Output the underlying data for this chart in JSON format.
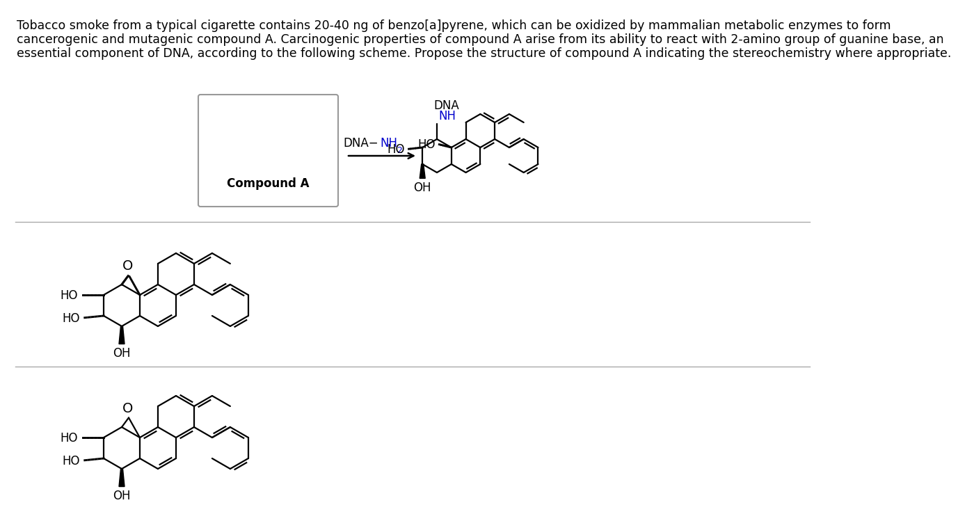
{
  "bg": "#ffffff",
  "black": "#000000",
  "blue": "#0000cd",
  "gray": "#aaaaaa",
  "text1": "Tobacco smoke from a typical cigarette contains 20-40 ng of benzo[a]pyrene, which can be oxidized by mammalian metabolic enzymes to form",
  "text2": "cancerogenic and mutagenic compound A. Carcinogenic properties of compound A arise from its ability to react with 2-amino group of guanine base, an",
  "text3": "essential component of DNA, according to the following scheme. Propose the structure of compound A indicating the stereochemistry where appropriate.",
  "compound_a_label": "Compound A",
  "fs_main": 12.5,
  "fs_chem": 12,
  "fs_sub": 9
}
